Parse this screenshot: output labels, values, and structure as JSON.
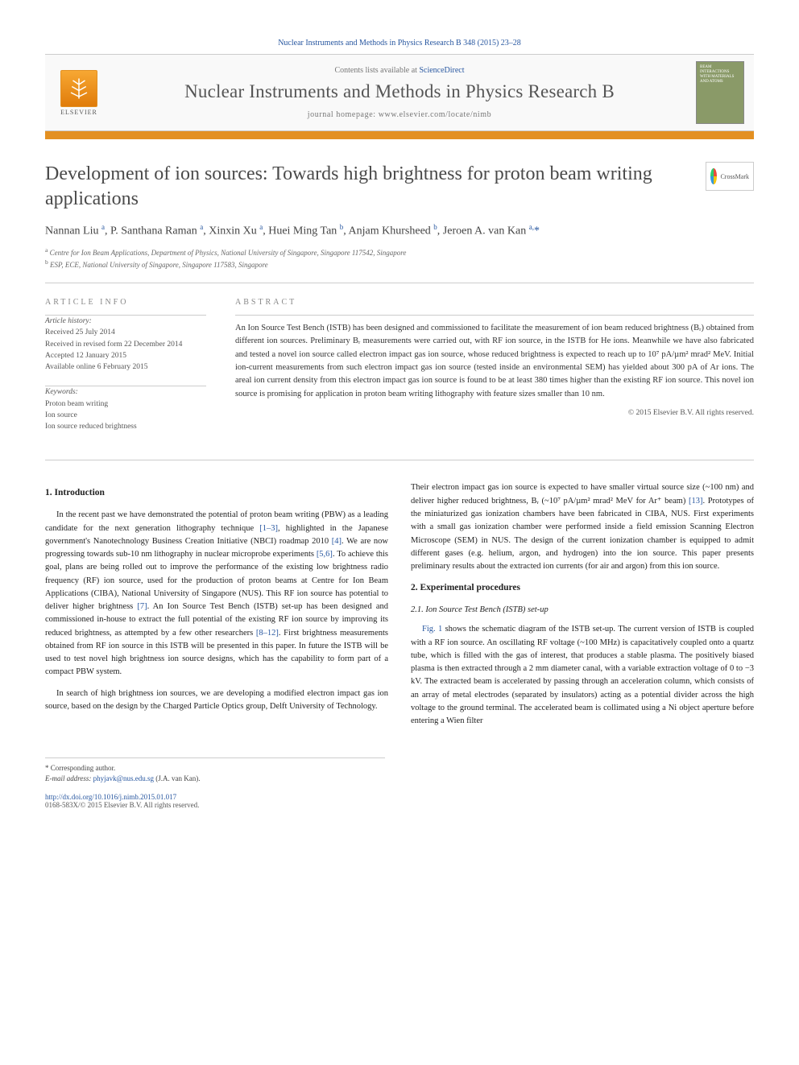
{
  "header": {
    "citation": "Nuclear Instruments and Methods in Physics Research B 348 (2015) 23–28",
    "contents_prefix": "Contents lists available at ",
    "contents_link": "ScienceDirect",
    "journal_name": "Nuclear Instruments and Methods in Physics Research B",
    "homepage_prefix": "journal homepage: ",
    "homepage_url": "www.elsevier.com/locate/nimb",
    "elsevier_label": "ELSEVIER",
    "cover_text": "BEAM INTERACTIONS WITH MATERIALS AND ATOMS",
    "colors": {
      "orange_rule": "#e39022",
      "link": "#2857a0",
      "text": "#333333",
      "muted": "#777777",
      "cover_bg": "#8a9a68"
    }
  },
  "crossmark": {
    "label": "CrossMark"
  },
  "title": "Development of ion sources: Towards high brightness for proton beam writing applications",
  "authors_html": "Nannan Liu <sup>a</sup>, P. Santhana Raman <sup>a</sup>, Xinxin Xu <sup>a</sup>, Huei Ming Tan <sup>b</sup>, Anjam Khursheed <sup>b</sup>, Jeroen A. van Kan <sup>a,</sup><span class='corr'>*</span>",
  "affiliations": {
    "a": "Centre for Ion Beam Applications, Department of Physics, National University of Singapore, Singapore 117542, Singapore",
    "b": "ESP, ECE, National University of Singapore, Singapore 117583, Singapore"
  },
  "article_info": {
    "label": "ARTICLE INFO",
    "history_label": "Article history:",
    "history": [
      "Received 25 July 2014",
      "Received in revised form 22 December 2014",
      "Accepted 12 January 2015",
      "Available online 6 February 2015"
    ],
    "keywords_label": "Keywords:",
    "keywords": [
      "Proton beam writing",
      "Ion source",
      "Ion source reduced brightness"
    ]
  },
  "abstract": {
    "label": "ABSTRACT",
    "text": "An Ion Source Test Bench (ISTB) has been designed and commissioned to facilitate the measurement of ion beam reduced brightness (Bᵣ) obtained from different ion sources. Preliminary Bᵣ measurements were carried out, with RF ion source, in the ISTB for He ions. Meanwhile we have also fabricated and tested a novel ion source called electron impact gas ion source, whose reduced brightness is expected to reach up to 10⁷ pA/µm² mrad² MeV. Initial ion-current measurements from such electron impact gas ion source (tested inside an environmental SEM) has yielded about 300 pA of Ar ions. The areal ion current density from this electron impact gas ion source is found to be at least 380 times higher than the existing RF ion source. This novel ion source is promising for application in proton beam writing lithography with feature sizes smaller than 10 nm.",
    "copyright": "© 2015 Elsevier B.V. All rights reserved."
  },
  "sections": {
    "intro_heading": "1. Introduction",
    "intro_p1": "In the recent past we have demonstrated the potential of proton beam writing (PBW) as a leading candidate for the next generation lithography technique [1–3], highlighted in the Japanese government's Nanotechnology Business Creation Initiative (NBCI) roadmap 2010 [4]. We are now progressing towards sub-10 nm lithography in nuclear microprobe experiments [5,6]. To achieve this goal, plans are being rolled out to improve the performance of the existing low brightness radio frequency (RF) ion source, used for the production of proton beams at Centre for Ion Beam Applications (CIBA), National University of Singapore (NUS). This RF ion source has potential to deliver higher brightness [7]. An Ion Source Test Bench (ISTB) set-up has been designed and commissioned in-house to extract the full potential of the existing RF ion source by improving its reduced brightness, as attempted by a few other researchers [8–12]. First brightness measurements obtained from RF ion source in this ISTB will be presented in this paper. In future the ISTB will be used to test novel high brightness ion source designs, which has the capability to form part of a compact PBW system.",
    "intro_p2": "In search of high brightness ion sources, we are developing a modified electron impact gas ion source, based on the design by the Charged Particle Optics group, Delft University of Technology.",
    "intro_p3": "Their electron impact gas ion source is expected to have smaller virtual source size (~100 nm) and deliver higher reduced brightness, Bᵣ (~10⁷ pA/µm² mrad² MeV for Ar⁺ beam) [13]. Prototypes of the miniaturized gas ionization chambers have been fabricated in CIBA, NUS. First experiments with a small gas ionization chamber were performed inside a field emission Scanning Electron Microscope (SEM) in NUS. The design of the current ionization chamber is equipped to admit different gases (e.g. helium, argon, and hydrogen) into the ion source. This paper presents preliminary results about the extracted ion currents (for air and argon) from this ion source.",
    "exp_heading": "2. Experimental procedures",
    "exp_sub": "2.1. Ion Source Test Bench (ISTB) set-up",
    "exp_p1": "Fig. 1 shows the schematic diagram of the ISTB set-up. The current version of ISTB is coupled with a RF ion source. An oscillating RF voltage (~100 MHz) is capacitatively coupled onto a quartz tube, which is filled with the gas of interest, that produces a stable plasma. The positively biased plasma is then extracted through a 2 mm diameter canal, with a variable extraction voltage of 0 to −3 kV. The extracted beam is accelerated by passing through an acceleration column, which consists of an array of metal electrodes (separated by insulators) acting as a potential divider across the high voltage to the ground terminal. The accelerated beam is collimated using a Ni object aperture before entering a Wien filter"
  },
  "footer": {
    "corr_label": "* Corresponding author.",
    "email_label": "E-mail address: ",
    "email": "phyjavk@nus.edu.sg",
    "email_name": " (J.A. van Kan).",
    "doi": "http://dx.doi.org/10.1016/j.nimb.2015.01.017",
    "rights": "0168-583X/© 2015 Elsevier B.V. All rights reserved."
  },
  "refs_in_text": [
    "[1–3]",
    "[4]",
    "[5,6]",
    "[7]",
    "[8–12]",
    "[13]"
  ]
}
